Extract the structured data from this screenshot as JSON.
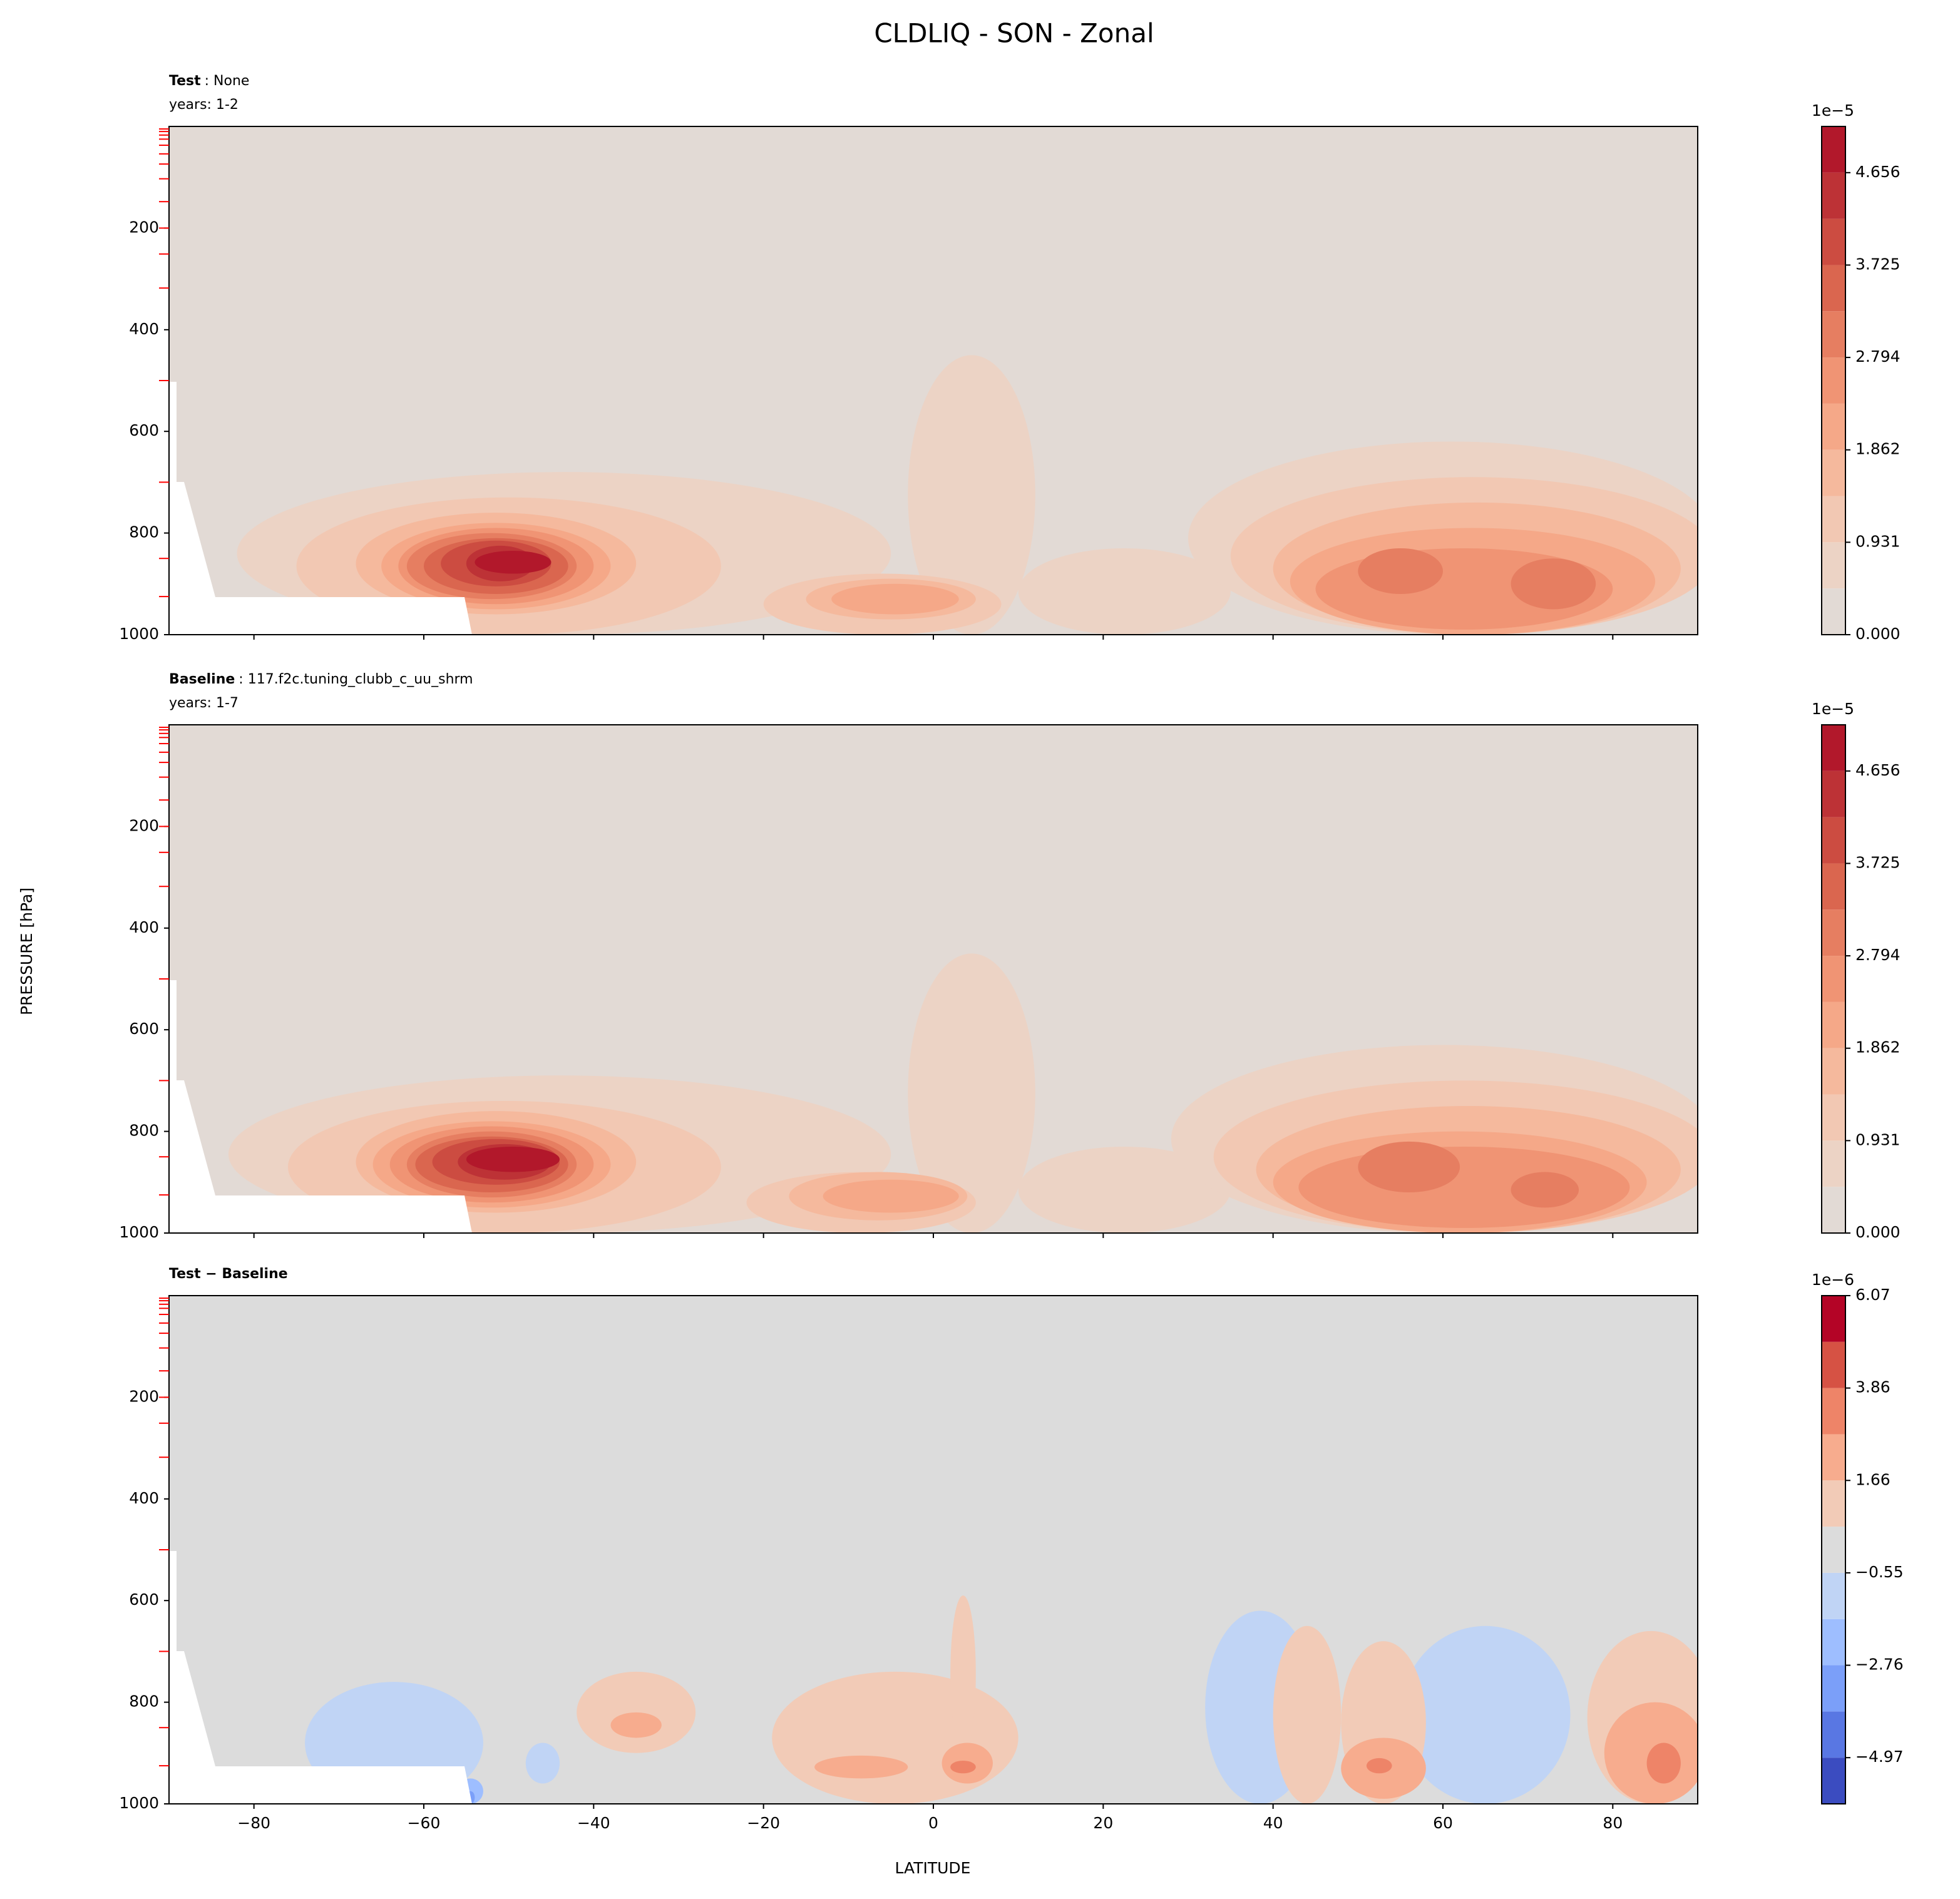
{
  "title": "CLDLIQ - SON - Zonal",
  "ylabel": "PRESSURE [hPa]",
  "xlabel": "LATITUDE",
  "chart_data": [
    {
      "type": "contour",
      "subtitle_bold": "Test",
      "subtitle": ": None",
      "years": "years: 1-2",
      "xlim": [
        -90,
        90
      ],
      "xticks": [
        -80,
        -60,
        -40,
        -20,
        0,
        20,
        40,
        60,
        80
      ],
      "ylim": [
        1000,
        0
      ],
      "yticks": [
        200,
        400,
        600,
        800,
        1000
      ],
      "minor_yticks": [
        5,
        10,
        17,
        25,
        37,
        54,
        74,
        103,
        148,
        200,
        251,
        318,
        500,
        700,
        850,
        925
      ],
      "minor_tick_color": "#ff0000",
      "background": 0,
      "regions": [
        {
          "lat": [
            -82,
            -5
          ],
          "pressure": [
            680,
            1000
          ],
          "value": 0.4656
        },
        {
          "lat": [
            -3,
            12
          ],
          "pressure": [
            450,
            1000
          ],
          "value": 0.4656
        },
        {
          "lat": [
            10,
            35
          ],
          "pressure": [
            830,
            1000
          ],
          "value": 0.4656
        },
        {
          "lat": [
            30,
            92
          ],
          "pressure": [
            620,
            1000
          ],
          "value": 0.4656
        },
        {
          "lat": [
            -75,
            -25
          ],
          "pressure": [
            730,
            1000
          ],
          "value": 0.9312
        },
        {
          "lat": [
            -20,
            8
          ],
          "pressure": [
            880,
            1000
          ],
          "value": 0.9312
        },
        {
          "lat": [
            35,
            92
          ],
          "pressure": [
            690,
            1000
          ],
          "value": 0.9312
        },
        {
          "lat": [
            -68,
            -35
          ],
          "pressure": [
            760,
            960
          ],
          "value": 1.3968
        },
        {
          "lat": [
            -15,
            5
          ],
          "pressure": [
            890,
            970
          ],
          "value": 1.3968
        },
        {
          "lat": [
            40,
            88
          ],
          "pressure": [
            740,
            1000
          ],
          "value": 1.3968
        },
        {
          "lat": [
            -65,
            -38
          ],
          "pressure": [
            780,
            950
          ],
          "value": 1.8624
        },
        {
          "lat": [
            -12,
            3
          ],
          "pressure": [
            900,
            960
          ],
          "value": 1.8624
        },
        {
          "lat": [
            42,
            85
          ],
          "pressure": [
            790,
            1000
          ],
          "value": 1.8624
        },
        {
          "lat": [
            -63,
            -40
          ],
          "pressure": [
            790,
            940
          ],
          "value": 2.328
        },
        {
          "lat": [
            45,
            80
          ],
          "pressure": [
            830,
            990
          ],
          "value": 2.328
        },
        {
          "lat": [
            -62,
            -42
          ],
          "pressure": [
            800,
            930
          ],
          "value": 2.7936
        },
        {
          "lat": [
            50,
            60
          ],
          "pressure": [
            830,
            920
          ],
          "value": 2.7936
        },
        {
          "lat": [
            68,
            78
          ],
          "pressure": [
            850,
            950
          ],
          "value": 2.7936
        },
        {
          "lat": [
            -60,
            -43
          ],
          "pressure": [
            810,
            920
          ],
          "value": 3.2592
        },
        {
          "lat": [
            -58,
            -45
          ],
          "pressure": [
            815,
            905
          ],
          "value": 3.7248
        },
        {
          "lat": [
            -55,
            -47
          ],
          "pressure": [
            825,
            895
          ],
          "value": 4.1904
        },
        {
          "lat": [
            -54,
            -45
          ],
          "pressure": [
            835,
            880
          ],
          "value": 4.656
        }
      ],
      "colorbar": {
        "offset_label": "1e−5",
        "levels": [
          0,
          0.4656,
          0.9312,
          1.3968,
          1.8624,
          2.328,
          2.7936,
          3.2592,
          3.7248,
          4.1904,
          4.656,
          5.1216
        ],
        "colors": [
          "#e2dad5",
          "#ecd3c5",
          "#f2c8b3",
          "#f5b99d",
          "#f5a888",
          "#f09474",
          "#e67e61",
          "#da664f",
          "#cc4c41",
          "#bd3236",
          "#b2182b"
        ],
        "ticks": [
          {
            "value": 0,
            "label": "0.000"
          },
          {
            "value": 0.9312,
            "label": "0.931"
          },
          {
            "value": 1.8624,
            "label": "1.862"
          },
          {
            "value": 2.7936,
            "label": "2.794"
          },
          {
            "value": 3.7248,
            "label": "3.725"
          },
          {
            "value": 4.656,
            "label": "4.656"
          }
        ]
      }
    },
    {
      "type": "contour",
      "subtitle_bold": "Baseline",
      "subtitle": ": 117.f2c.tuning_clubb_c_uu_shrm",
      "years": "years: 1-7",
      "xlim": [
        -90,
        90
      ],
      "xticks": [
        -80,
        -60,
        -40,
        -20,
        0,
        20,
        40,
        60,
        80
      ],
      "ylim": [
        1000,
        0
      ],
      "yticks": [
        200,
        400,
        600,
        800,
        1000
      ],
      "minor_yticks": [
        5,
        10,
        17,
        25,
        37,
        54,
        74,
        103,
        148,
        200,
        251,
        318,
        500,
        700,
        850,
        925
      ],
      "minor_tick_color": "#ff0000",
      "background": 0,
      "regions": [
        {
          "lat": [
            -83,
            -5
          ],
          "pressure": [
            690,
            1000
          ],
          "value": 0.4656
        },
        {
          "lat": [
            -3,
            12
          ],
          "pressure": [
            450,
            1000
          ],
          "value": 0.4656
        },
        {
          "lat": [
            10,
            35
          ],
          "pressure": [
            830,
            1000
          ],
          "value": 0.4656
        },
        {
          "lat": [
            28,
            92
          ],
          "pressure": [
            630,
            1000
          ],
          "value": 0.4656
        },
        {
          "lat": [
            -76,
            -25
          ],
          "pressure": [
            740,
            1000
          ],
          "value": 0.9312
        },
        {
          "lat": [
            -22,
            5
          ],
          "pressure": [
            880,
            1000
          ],
          "value": 0.9312
        },
        {
          "lat": [
            33,
            92
          ],
          "pressure": [
            700,
            1000
          ],
          "value": 0.9312
        },
        {
          "lat": [
            -68,
            -35
          ],
          "pressure": [
            760,
            960
          ],
          "value": 1.3968
        },
        {
          "lat": [
            -17,
            4
          ],
          "pressure": [
            880,
            975
          ],
          "value": 1.3968
        },
        {
          "lat": [
            38,
            88
          ],
          "pressure": [
            750,
            1000
          ],
          "value": 1.3968
        },
        {
          "lat": [
            -66,
            -38
          ],
          "pressure": [
            780,
            950
          ],
          "value": 1.8624
        },
        {
          "lat": [
            -13,
            3
          ],
          "pressure": [
            895,
            960
          ],
          "value": 1.8624
        },
        {
          "lat": [
            40,
            84
          ],
          "pressure": [
            800,
            1000
          ],
          "value": 1.8624
        },
        {
          "lat": [
            -64,
            -40
          ],
          "pressure": [
            790,
            940
          ],
          "value": 2.328
        },
        {
          "lat": [
            43,
            82
          ],
          "pressure": [
            830,
            990
          ],
          "value": 2.328
        },
        {
          "lat": [
            -62,
            -42
          ],
          "pressure": [
            800,
            930
          ],
          "value": 2.7936
        },
        {
          "lat": [
            50,
            62
          ],
          "pressure": [
            820,
            920
          ],
          "value": 2.7936
        },
        {
          "lat": [
            68,
            76
          ],
          "pressure": [
            880,
            950
          ],
          "value": 2.7936
        },
        {
          "lat": [
            -61,
            -43
          ],
          "pressure": [
            810,
            920
          ],
          "value": 3.2592
        },
        {
          "lat": [
            -59,
            -44
          ],
          "pressure": [
            815,
            905
          ],
          "value": 3.7248
        },
        {
          "lat": [
            -56,
            -45
          ],
          "pressure": [
            825,
            895
          ],
          "value": 4.1904
        },
        {
          "lat": [
            -55,
            -44
          ],
          "pressure": [
            830,
            880
          ],
          "value": 4.656
        }
      ],
      "colorbar": {
        "offset_label": "1e−5",
        "levels": [
          0,
          0.4656,
          0.9312,
          1.3968,
          1.8624,
          2.328,
          2.7936,
          3.2592,
          3.7248,
          4.1904,
          4.656,
          5.1216
        ],
        "colors": [
          "#e2dad5",
          "#ecd3c5",
          "#f2c8b3",
          "#f5b99d",
          "#f5a888",
          "#f09474",
          "#e67e61",
          "#da664f",
          "#cc4c41",
          "#bd3236",
          "#b2182b"
        ],
        "ticks": [
          {
            "value": 0,
            "label": "0.000"
          },
          {
            "value": 0.9312,
            "label": "0.931"
          },
          {
            "value": 1.8624,
            "label": "1.862"
          },
          {
            "value": 2.7936,
            "label": "2.794"
          },
          {
            "value": 3.7248,
            "label": "3.725"
          },
          {
            "value": 4.656,
            "label": "4.656"
          }
        ]
      }
    },
    {
      "type": "contour",
      "subtitle_bold": "Test − Baseline",
      "xlim": [
        -90,
        90
      ],
      "xticks": [
        {
          "value": -80,
          "label": "−80"
        },
        {
          "value": -60,
          "label": "−60"
        },
        {
          "value": -40,
          "label": "−40"
        },
        {
          "value": -20,
          "label": "−20"
        },
        0,
        20,
        40,
        60,
        80
      ],
      "ylim": [
        1000,
        0
      ],
      "yticks": [
        200,
        400,
        600,
        800,
        1000
      ],
      "minor_yticks": [
        5,
        10,
        17,
        25,
        37,
        54,
        74,
        103,
        148,
        200,
        251,
        318,
        500,
        700,
        850,
        925
      ],
      "minor_tick_color": "#ff0000",
      "background": -0.5518,
      "regions": [
        {
          "lat": [
            -74,
            -53
          ],
          "pressure": [
            760,
            1000
          ],
          "value": -1.6555
        },
        {
          "lat": [
            32,
            45
          ],
          "pressure": [
            620,
            1000
          ],
          "value": -1.6555
        },
        {
          "lat": [
            55,
            75
          ],
          "pressure": [
            650,
            1000
          ],
          "value": -1.6555
        },
        {
          "lat": [
            -48,
            -44
          ],
          "pressure": [
            880,
            960
          ],
          "value": -1.6555
        },
        {
          "lat": [
            -56,
            -53
          ],
          "pressure": [
            950,
            1000
          ],
          "value": -2.7591
        },
        {
          "lat": [
            -55,
            -54
          ],
          "pressure": [
            975,
            1000
          ],
          "value": -3.8627
        },
        {
          "lat": [
            -42,
            -28
          ],
          "pressure": [
            740,
            900
          ],
          "value": 0.5518
        },
        {
          "lat": [
            -19,
            10
          ],
          "pressure": [
            740,
            1000
          ],
          "value": 0.5518
        },
        {
          "lat": [
            2,
            5
          ],
          "pressure": [
            590,
            900
          ],
          "value": 0.5518
        },
        {
          "lat": [
            40,
            48
          ],
          "pressure": [
            650,
            1000
          ],
          "value": 0.5518
        },
        {
          "lat": [
            48,
            58
          ],
          "pressure": [
            680,
            1000
          ],
          "value": 0.5518
        },
        {
          "lat": [
            77,
            92
          ],
          "pressure": [
            660,
            1000
          ],
          "value": 0.5518
        },
        {
          "lat": [
            -38,
            -32
          ],
          "pressure": [
            820,
            870
          ],
          "value": 1.6555
        },
        {
          "lat": [
            -14,
            -3
          ],
          "pressure": [
            905,
            950
          ],
          "value": 1.6555
        },
        {
          "lat": [
            1,
            7
          ],
          "pressure": [
            880,
            960
          ],
          "value": 1.6555
        },
        {
          "lat": [
            48,
            58
          ],
          "pressure": [
            870,
            990
          ],
          "value": 1.6555
        },
        {
          "lat": [
            79,
            91
          ],
          "pressure": [
            800,
            1000
          ],
          "value": 1.6555
        },
        {
          "lat": [
            51,
            54
          ],
          "pressure": [
            910,
            940
          ],
          "value": 2.7591
        },
        {
          "lat": [
            2,
            5
          ],
          "pressure": [
            915,
            940
          ],
          "value": 2.7591
        },
        {
          "lat": [
            84,
            88
          ],
          "pressure": [
            880,
            960
          ],
          "value": 2.7591
        }
      ],
      "colorbar": {
        "offset_label": "1e−6",
        "levels": [
          -6.07,
          -4.9664,
          -3.8627,
          -2.7591,
          -1.6555,
          -0.5518,
          0.5518,
          1.6555,
          2.7591,
          3.8627,
          4.9664,
          6.07
        ],
        "colors": [
          "#3b4cc0",
          "#5977e3",
          "#7b9ff9",
          "#9ebeff",
          "#c0d4f5",
          "#dcdcdc",
          "#f2cbb7",
          "#f7ac8e",
          "#ee8468",
          "#d65244",
          "#b40426"
        ],
        "ticks": [
          {
            "value": -4.9664,
            "label": "−4.97"
          },
          {
            "value": -2.7591,
            "label": "−2.76"
          },
          {
            "value": -0.5518,
            "label": "−0.55"
          },
          {
            "value": 1.6555,
            "label": "1.66"
          },
          {
            "value": 3.8627,
            "label": "3.86"
          },
          {
            "value": 6.07,
            "label": "6.07"
          }
        ]
      }
    }
  ]
}
